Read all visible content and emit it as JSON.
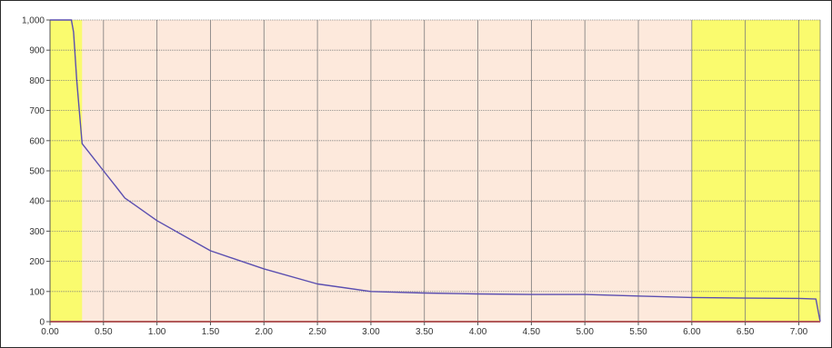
{
  "chart_data": {
    "type": "line",
    "title": "",
    "xlabel": "",
    "ylabel": "",
    "xlim": [
      0,
      7.2
    ],
    "ylim": [
      0,
      1000
    ],
    "x_ticks": [
      0.0,
      0.5,
      1.0,
      1.5,
      2.0,
      2.5,
      3.0,
      3.5,
      4.0,
      4.5,
      5.0,
      5.5,
      6.0,
      6.5,
      7.0
    ],
    "x_tick_labels": [
      "0.00",
      "0.50",
      "1.00",
      "1.50",
      "2.00",
      "2.50",
      "3.00",
      "3.50",
      "4.00",
      "4.50",
      "5.00",
      "5.50",
      "6.00",
      "6.50",
      "7.00"
    ],
    "y_ticks": [
      0,
      100,
      200,
      300,
      400,
      500,
      600,
      700,
      800,
      900,
      1000
    ],
    "y_tick_labels": [
      "0",
      "100",
      "200",
      "300",
      "400",
      "500",
      "600",
      "700",
      "800",
      "900",
      "1,000"
    ],
    "grid": true,
    "legend": "none",
    "colors": {
      "plot_background": "#fde9dc",
      "highlight_band": "#fafb6e",
      "series_line": "#5b4fb0",
      "baseline": "#b25a5a",
      "grid": "#7a7a7a"
    },
    "bands": [
      {
        "x_start": 0.0,
        "x_end": 0.3,
        "color": "#fafb6e"
      },
      {
        "x_start": 6.0,
        "x_end": 7.2,
        "color": "#fafb6e"
      }
    ],
    "series": [
      {
        "x": [
          0.0,
          0.2,
          0.22,
          0.25,
          0.3,
          0.4,
          0.5,
          0.6,
          0.7,
          0.8,
          1.0,
          1.2,
          1.5,
          2.0,
          2.5,
          3.0,
          3.5,
          4.0,
          4.5,
          5.0,
          5.5,
          6.0,
          6.5,
          7.0,
          7.16,
          7.2
        ],
        "values": [
          1000,
          1000,
          960,
          800,
          590,
          545,
          500,
          455,
          410,
          385,
          335,
          295,
          235,
          175,
          125,
          100,
          95,
          92,
          90,
          90,
          85,
          80,
          78,
          77,
          75,
          0
        ]
      }
    ]
  }
}
